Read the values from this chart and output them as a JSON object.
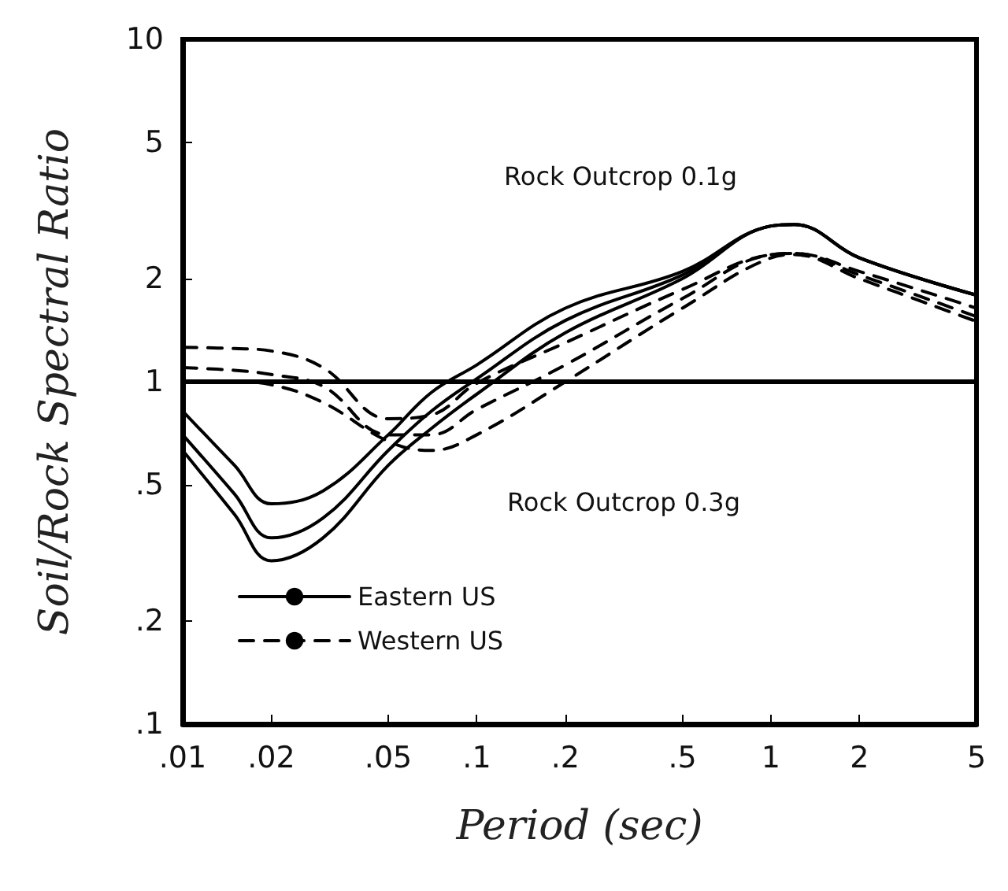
{
  "chart_data": {
    "type": "line",
    "xlabel": "Period (sec)",
    "ylabel": "Soil/Rock Spectral Ratio",
    "annotations": [
      "Rock Outcrop 0.1g",
      "Rock Outcrop 0.3g"
    ],
    "x": [
      0.01,
      0.015,
      0.02,
      0.03,
      0.05,
      0.07,
      0.1,
      0.2,
      0.5,
      1,
      1.2,
      2,
      5
    ],
    "series": [
      {
        "name": "Eastern US",
        "color": "#000000",
        "line_style": "solid",
        "values": [
          0.82,
          0.57,
          0.44,
          0.48,
          0.7,
          0.93,
          1.12,
          1.64,
          2.1,
          2.85,
          2.88,
          2.3,
          1.79
        ]
      },
      {
        "color": "#000000",
        "line_style": "solid",
        "values": [
          0.7,
          0.47,
          0.35,
          0.4,
          0.63,
          0.82,
          1.02,
          1.51,
          2.05,
          2.85,
          2.88,
          2.3,
          1.79
        ]
      },
      {
        "color": "#000000",
        "line_style": "solid",
        "values": [
          0.63,
          0.41,
          0.3,
          0.35,
          0.57,
          0.73,
          0.92,
          1.39,
          2.0,
          2.85,
          2.88,
          2.3,
          1.79
        ]
      },
      {
        "name": "Western US",
        "color": "#000000",
        "line_style": "dashed",
        "values": [
          1.26,
          1.25,
          1.23,
          1.1,
          0.78,
          0.8,
          0.99,
          1.3,
          1.86,
          2.35,
          2.37,
          2.1,
          1.64
        ]
      },
      {
        "color": "#000000",
        "line_style": "dashed",
        "values": [
          1.1,
          1.08,
          1.05,
          0.97,
          0.7,
          0.7,
          0.83,
          1.12,
          1.75,
          2.35,
          2.37,
          2.05,
          1.55
        ]
      },
      {
        "color": "#000000",
        "line_style": "dashed",
        "values": [
          1.0,
          1.0,
          0.98,
          0.87,
          0.67,
          0.63,
          0.7,
          1.0,
          1.64,
          2.3,
          2.35,
          2.0,
          1.5
        ]
      }
    ],
    "ref_lines": [
      {
        "axis": "y",
        "value": 1,
        "color": "#000000"
      }
    ],
    "xlim": [
      0.01,
      5
    ],
    "ylim": [
      0.1,
      10
    ],
    "xticks": [
      {
        "value": 0.01,
        "label": ".01"
      },
      {
        "value": 0.02,
        "label": ".02"
      },
      {
        "value": 0.05,
        "label": ".05"
      },
      {
        "value": 0.1,
        "label": ".1"
      },
      {
        "value": 0.2,
        "label": ".2"
      },
      {
        "value": 0.5,
        "label": ".5"
      },
      1,
      2,
      5
    ],
    "yticks": [
      {
        "value": 0.1,
        "label": ".1"
      },
      {
        "value": 0.2,
        "label": ".2"
      },
      {
        "value": 0.5,
        "label": ".5"
      },
      1,
      2,
      5,
      10
    ],
    "log": "xy",
    "grid": false,
    "legend": "bottom left",
    "marker": "none"
  }
}
